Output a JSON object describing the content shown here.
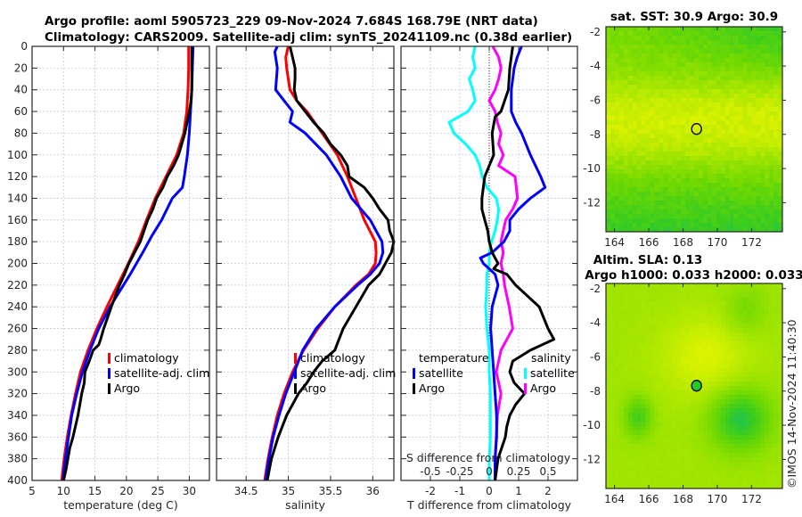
{
  "title_line1": "Argo profile: aoml 5905723_229 09-Nov-2024 7.684S 168.79E (NRT data)",
  "title_line2": "Climatology: CARS2009. Satellite-adj clim: synTS_20241109.nc (0.38d earlier)",
  "credit": "©IMOS 14-Nov-2024 11:40:30",
  "colors": {
    "climatology": "#ff0000",
    "satellite": "#0000ff",
    "argo": "#000000",
    "sal_satellite": "#00ffff",
    "sal_argo": "#ff00ff"
  },
  "chart_data": [
    {
      "type": "line",
      "name": "temperature-profile",
      "xlabel": "temperature (deg C)",
      "ylabel": "",
      "xlim": [
        5,
        33.2
      ],
      "ylim": [
        400,
        0
      ],
      "xticks": [
        "5",
        "10",
        "15",
        "20",
        "25",
        "30"
      ],
      "xtick_values": [
        5,
        10,
        15,
        20,
        25,
        30
      ],
      "yticks": [
        "0",
        "20",
        "40",
        "60",
        "80",
        "100",
        "120",
        "140",
        "160",
        "180",
        "200",
        "220",
        "240",
        "260",
        "280",
        "300",
        "320",
        "340",
        "360",
        "380",
        "400"
      ],
      "ytick_values": [
        0,
        20,
        40,
        60,
        80,
        100,
        120,
        140,
        160,
        180,
        200,
        220,
        240,
        260,
        280,
        300,
        320,
        340,
        360,
        380,
        400
      ],
      "grid": true,
      "legend": {
        "placement": "center-right",
        "entries": [
          "climatology",
          "satellite-adj. clim",
          "Argo"
        ]
      },
      "series": [
        {
          "name": "climatology",
          "color": "#ff0000",
          "depth": [
            0,
            20,
            40,
            60,
            80,
            100,
            120,
            140,
            160,
            180,
            200,
            220,
            240,
            260,
            280,
            300,
            320,
            340,
            360,
            380,
            400
          ],
          "values": [
            29.9,
            29.9,
            29.8,
            29.6,
            29.1,
            28.0,
            26.3,
            24.6,
            23.2,
            21.9,
            20.3,
            18.6,
            16.9,
            15.3,
            13.9,
            12.7,
            11.9,
            11.2,
            10.6,
            10.1,
            9.7
          ]
        },
        {
          "name": "satellite-adj. clim",
          "color": "#0000ff",
          "depth": [
            0,
            20,
            40,
            60,
            80,
            100,
            120,
            130,
            140,
            160,
            175,
            190,
            210,
            240,
            260,
            280,
            300,
            320,
            340,
            360,
            380,
            400
          ],
          "values": [
            30.6,
            30.5,
            30.4,
            30.2,
            30.0,
            29.7,
            29.2,
            28.9,
            27.3,
            25.6,
            24.0,
            22.6,
            20.6,
            17.4,
            15.6,
            14.2,
            13.0,
            12.1,
            11.3,
            10.8,
            10.3,
            9.9
          ]
        },
        {
          "name": "Argo",
          "color": "#000000",
          "depth": [
            0,
            20,
            40,
            50,
            60,
            80,
            100,
            110,
            120,
            130,
            140,
            150,
            160,
            170,
            180,
            190,
            200,
            210,
            220,
            240,
            260,
            270,
            275,
            280,
            290,
            300,
            310,
            320,
            330,
            340,
            350,
            360,
            370,
            380,
            390,
            400
          ],
          "values": [
            30.4,
            30.4,
            30.4,
            30.3,
            30.0,
            29.3,
            28.3,
            27.5,
            26.5,
            25.8,
            24.8,
            24.2,
            23.4,
            22.8,
            22.2,
            21.3,
            20.4,
            19.7,
            18.9,
            17.6,
            16.4,
            15.9,
            15.6,
            14.7,
            14.1,
            13.4,
            13.3,
            12.9,
            12.6,
            12.3,
            11.9,
            11.5,
            11.0,
            10.7,
            10.4,
            10.0
          ]
        }
      ]
    },
    {
      "type": "line",
      "name": "salinity-profile",
      "xlabel": "salinity",
      "xlim": [
        34.15,
        36.25
      ],
      "ylim": [
        400,
        0
      ],
      "xticks": [
        "34.5",
        "35",
        "35.5",
        "36"
      ],
      "xtick_values": [
        34.5,
        35,
        35.5,
        36
      ],
      "grid": true,
      "legend": {
        "placement": "center-left",
        "entries": [
          "climatology",
          "satellite-adj. clim",
          "Argo"
        ]
      },
      "series": [
        {
          "name": "climatology",
          "color": "#ff0000",
          "depth": [
            0,
            10,
            20,
            30,
            40,
            50,
            60,
            80,
            100,
            120,
            140,
            160,
            180,
            190,
            200,
            210,
            220,
            240,
            260,
            280,
            300,
            320,
            340,
            360,
            380,
            400
          ],
          "values": [
            35.0,
            34.97,
            34.98,
            35.0,
            35.02,
            35.1,
            35.22,
            35.4,
            35.58,
            35.7,
            35.8,
            35.9,
            36.03,
            36.04,
            36.03,
            35.95,
            35.8,
            35.55,
            35.35,
            35.18,
            35.05,
            34.95,
            34.87,
            34.81,
            34.76,
            34.72
          ]
        },
        {
          "name": "satellite-adj. clim",
          "color": "#0000ff",
          "depth": [
            0,
            5,
            20,
            40,
            50,
            60,
            70,
            80,
            100,
            120,
            140,
            160,
            180,
            190,
            200,
            210,
            220,
            240,
            260,
            280,
            300,
            320,
            340,
            360,
            380,
            400
          ],
          "values": [
            34.87,
            34.84,
            34.87,
            34.85,
            34.95,
            35.05,
            35.02,
            35.2,
            35.45,
            35.62,
            35.75,
            35.97,
            36.11,
            36.12,
            36.08,
            35.97,
            35.82,
            35.55,
            35.33,
            35.17,
            35.07,
            34.97,
            34.89,
            34.82,
            34.77,
            34.73
          ]
        },
        {
          "name": "Argo",
          "color": "#000000",
          "depth": [
            0,
            10,
            20,
            30,
            40,
            50,
            60,
            70,
            80,
            90,
            100,
            110,
            120,
            130,
            140,
            150,
            160,
            170,
            180,
            190,
            200,
            210,
            220,
            240,
            260,
            280,
            290,
            300,
            310,
            320,
            330,
            340,
            360,
            380,
            400
          ],
          "values": [
            35.02,
            35.05,
            35.08,
            35.08,
            35.07,
            35.1,
            35.2,
            35.3,
            35.42,
            35.5,
            35.62,
            35.7,
            35.72,
            35.9,
            36.0,
            36.08,
            36.18,
            36.2,
            36.25,
            36.22,
            36.15,
            36.08,
            35.95,
            35.8,
            35.65,
            35.55,
            35.4,
            35.3,
            35.22,
            35.12,
            35.05,
            34.98,
            34.88,
            34.8,
            34.75
          ]
        }
      ]
    },
    {
      "type": "line",
      "name": "difference-profile",
      "xlabel": "T difference from climatology",
      "xlabel2": "S difference from climatology",
      "xlim": [
        -3,
        3
      ],
      "ylim": [
        400,
        0
      ],
      "xticks": [
        "-2",
        "-1",
        "0",
        "1",
        "2"
      ],
      "xtick_values": [
        -2,
        -1,
        0,
        1,
        2
      ],
      "s_xticks": [
        "-0.5",
        "-0.25",
        "0",
        "0.25",
        "0.5"
      ],
      "s_xtick_values": [
        -0.5,
        -0.25,
        0,
        0.25,
        0.5
      ],
      "grid": true,
      "legend_temperature": {
        "title": "temperature",
        "entries": [
          "satellite",
          "Argo"
        ]
      },
      "legend_salinity": {
        "title": "salinity",
        "entries": [
          "satellite",
          "Argo"
        ]
      },
      "series": [
        {
          "name": "temperature satellite",
          "kind": "T",
          "color": "#0000ff",
          "depth": [
            0,
            10,
            20,
            40,
            60,
            70,
            80,
            100,
            120,
            130,
            140,
            150,
            160,
            170,
            180,
            190,
            195,
            200,
            210,
            220,
            240,
            260,
            280,
            300,
            320,
            340,
            360,
            380,
            400
          ],
          "values": [
            1.1,
            0.95,
            0.85,
            0.75,
            0.75,
            0.9,
            1.1,
            1.4,
            1.75,
            1.9,
            1.4,
            1.0,
            0.7,
            0.7,
            0.5,
            0.1,
            -0.3,
            -0.2,
            0.2,
            0.3,
            0.1,
            0.05,
            0.1,
            0.15,
            0.2,
            0.25,
            0.25,
            0.2,
            0.2
          ]
        },
        {
          "name": "temperature Argo",
          "kind": "T",
          "color": "#000000",
          "depth": [
            0,
            20,
            40,
            60,
            65,
            80,
            100,
            110,
            120,
            130,
            140,
            150,
            160,
            170,
            180,
            190,
            200,
            205,
            210,
            220,
            240,
            260,
            270,
            280,
            290,
            300,
            310,
            320,
            330,
            340,
            350,
            360,
            380,
            400
          ],
          "values": [
            0.8,
            0.7,
            0.65,
            0.4,
            0.2,
            0.1,
            0.15,
            0.0,
            -0.15,
            -0.2,
            -0.25,
            -0.25,
            -0.15,
            -0.05,
            0.0,
            0.1,
            0.3,
            0.15,
            0.6,
            0.9,
            1.7,
            2.0,
            2.2,
            1.4,
            0.8,
            0.7,
            0.85,
            1.2,
            0.9,
            0.7,
            0.6,
            0.55,
            0.3,
            0.2
          ]
        }
      ],
      "series_salinity": [
        {
          "name": "salinity satellite",
          "kind": "S",
          "color": "#00ffff",
          "depth": [
            0,
            10,
            20,
            30,
            40,
            50,
            60,
            70,
            80,
            90,
            100,
            110,
            120,
            130,
            140,
            150,
            160,
            170,
            180,
            190,
            200,
            210,
            220,
            240,
            260,
            280,
            300,
            320,
            340,
            360,
            380,
            400
          ],
          "values": [
            -0.12,
            -0.14,
            -0.12,
            -0.17,
            -0.14,
            -0.12,
            -0.18,
            -0.34,
            -0.3,
            -0.2,
            -0.12,
            -0.08,
            -0.06,
            -0.02,
            0.06,
            0.08,
            0.07,
            0.05,
            0.02,
            0.0,
            0.0,
            -0.02,
            -0.02,
            -0.03,
            -0.02,
            0.0,
            0.0,
            0.01,
            0.01,
            0.01,
            0.0,
            0.0
          ]
        },
        {
          "name": "salinity Argo",
          "kind": "S",
          "color": "#ff00ff",
          "depth": [
            0,
            10,
            20,
            30,
            40,
            50,
            60,
            70,
            80,
            90,
            100,
            110,
            120,
            130,
            140,
            150,
            160,
            170,
            180,
            190,
            200,
            210,
            220,
            240,
            260,
            280,
            290,
            300,
            310,
            320,
            340,
            360,
            380,
            400
          ],
          "values": [
            0.03,
            0.08,
            0.1,
            0.08,
            0.05,
            0.0,
            0.05,
            0.07,
            0.1,
            0.08,
            0.12,
            0.08,
            0.22,
            0.23,
            0.24,
            0.2,
            0.14,
            0.12,
            0.1,
            0.12,
            0.1,
            0.12,
            0.13,
            0.17,
            0.2,
            0.1,
            0.08,
            0.06,
            0.08,
            0.1,
            0.07,
            0.06,
            0.05,
            0.05
          ]
        }
      ]
    },
    {
      "type": "heatmap",
      "name": "sst-map",
      "title": "sat. SST: 30.9 Argo: 30.9",
      "xlim": [
        163.5,
        173.8
      ],
      "ylim": [
        -13.7,
        -1.7
      ],
      "xticks": [
        "164",
        "166",
        "168",
        "170",
        "172"
      ],
      "xtick_values": [
        164,
        166,
        168,
        170,
        172
      ],
      "yticks": [
        "-2",
        "-4",
        "-6",
        "-8",
        "-10",
        "-12"
      ],
      "ytick_values": [
        -2,
        -4,
        -6,
        -8,
        -10,
        -12
      ],
      "marker": {
        "lon": 168.79,
        "lat": -7.684,
        "filled": false
      }
    },
    {
      "type": "heatmap",
      "name": "sla-map",
      "title": "Altim. SLA: 0.13",
      "subtitle": "Argo h1000: 0.033 h2000: 0.033",
      "xlim": [
        163.5,
        173.8
      ],
      "ylim": [
        -13.7,
        -1.7
      ],
      "xticks": [
        "164",
        "166",
        "168",
        "170",
        "172"
      ],
      "xtick_values": [
        164,
        166,
        168,
        170,
        172
      ],
      "yticks": [
        "-2",
        "-4",
        "-6",
        "-8",
        "-10",
        "-12"
      ],
      "ytick_values": [
        -2,
        -4,
        -6,
        -8,
        -10,
        -12
      ],
      "marker": {
        "lon": 168.79,
        "lat": -7.684,
        "filled": true
      }
    }
  ]
}
